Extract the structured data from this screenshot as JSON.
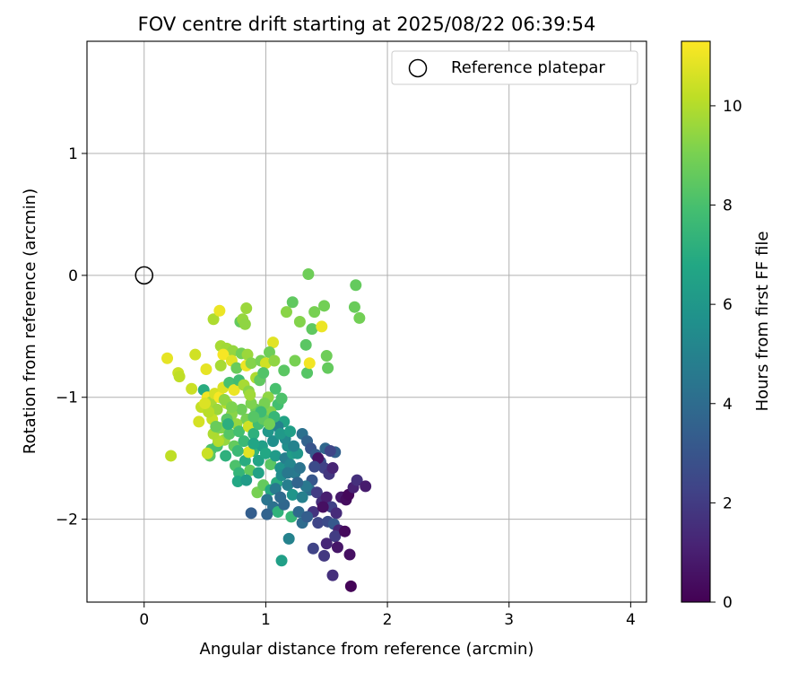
{
  "chart_data": {
    "type": "scatter",
    "title": "FOV centre drift starting at 2025/08/22 06:39:54",
    "xlabel": "Angular distance from reference (arcmin)",
    "ylabel": "Rotation from reference (arcmin)",
    "xlim": [
      -0.47,
      4.13
    ],
    "ylim": [
      -2.68,
      1.92
    ],
    "xticks": [
      0,
      1,
      2,
      3,
      4
    ],
    "yticks": [
      -2,
      -1,
      0,
      1
    ],
    "grid": true,
    "legend": {
      "position": "top-right",
      "label": "Reference platepar"
    },
    "reference_point": {
      "x": 0,
      "y": 0
    },
    "colorbar": {
      "label": "Hours from first FF file",
      "colormap": "viridis",
      "range": [
        0,
        11.3
      ],
      "ticks": [
        0,
        2,
        4,
        6,
        8,
        10
      ]
    },
    "series": [
      {
        "points": [
          [
            1.35,
            0.01,
            8.8
          ],
          [
            1.74,
            -0.08,
            8.6
          ],
          [
            1.22,
            -0.22,
            8.5
          ],
          [
            1.4,
            -0.3,
            9.0
          ],
          [
            1.48,
            -0.25,
            8.9
          ],
          [
            1.73,
            -0.26,
            8.7
          ],
          [
            1.77,
            -0.35,
            8.9
          ],
          [
            1.17,
            -0.3,
            9.3
          ],
          [
            1.28,
            -0.38,
            9.2
          ],
          [
            1.38,
            -0.44,
            8.5
          ],
          [
            1.46,
            -0.42,
            11.0
          ],
          [
            1.33,
            -0.57,
            8.4
          ],
          [
            1.24,
            -0.7,
            9.0
          ],
          [
            1.5,
            -0.66,
            8.8
          ],
          [
            1.51,
            -0.76,
            8.6
          ],
          [
            1.34,
            -0.8,
            8.3
          ],
          [
            1.36,
            -0.72,
            11.1
          ],
          [
            1.15,
            -0.78,
            8.4
          ],
          [
            1.06,
            -0.55,
            10.8
          ],
          [
            0.79,
            -0.38,
            8.6
          ],
          [
            0.81,
            -0.36,
            9.5
          ],
          [
            0.83,
            -0.4,
            9.4
          ],
          [
            0.84,
            -0.27,
            9.6
          ],
          [
            0.57,
            -0.36,
            9.9
          ],
          [
            0.62,
            -0.29,
            11.0
          ],
          [
            0.63,
            -0.58,
            9.8
          ],
          [
            0.68,
            -0.6,
            9.7
          ],
          [
            0.73,
            -0.62,
            9.5
          ],
          [
            0.8,
            -0.64,
            8.9
          ],
          [
            0.85,
            -0.65,
            9.6
          ],
          [
            0.65,
            -0.65,
            11.2
          ],
          [
            0.72,
            -0.7,
            10.8
          ],
          [
            0.76,
            -0.76,
            8.7
          ],
          [
            0.84,
            -0.74,
            11.0
          ],
          [
            0.88,
            -0.72,
            9.2
          ],
          [
            0.96,
            -0.7,
            9.0
          ],
          [
            1.0,
            -0.72,
            10.5
          ],
          [
            1.03,
            -0.63,
            8.8
          ],
          [
            1.07,
            -0.7,
            9.4
          ],
          [
            0.63,
            -0.74,
            9.8
          ],
          [
            0.19,
            -0.68,
            10.9
          ],
          [
            0.28,
            -0.8,
            10.4
          ],
          [
            0.29,
            -0.83,
            10.2
          ],
          [
            0.42,
            -0.65,
            10.5
          ],
          [
            0.51,
            -0.77,
            10.9
          ],
          [
            0.39,
            -0.93,
            10.4
          ],
          [
            0.49,
            -0.94,
            7.0
          ],
          [
            0.47,
            -1.08,
            10.3
          ],
          [
            0.52,
            -1.0,
            11.1
          ],
          [
            0.55,
            -1.04,
            9.8
          ],
          [
            0.58,
            -0.97,
            10.6
          ],
          [
            0.62,
            -1.0,
            11.2
          ],
          [
            0.65,
            -0.92,
            10.7
          ],
          [
            0.68,
            -1.05,
            10.0
          ],
          [
            0.7,
            -0.88,
            8.0
          ],
          [
            0.74,
            -0.94,
            11.0
          ],
          [
            0.78,
            -0.86,
            7.8
          ],
          [
            0.82,
            -0.9,
            9.8
          ],
          [
            0.86,
            -0.95,
            9.3
          ],
          [
            0.92,
            -0.84,
            9.9
          ],
          [
            0.95,
            -0.86,
            8.5
          ],
          [
            0.98,
            -0.8,
            8.2
          ],
          [
            1.08,
            -0.93,
            8.0
          ],
          [
            1.1,
            -1.06,
            7.9
          ],
          [
            1.13,
            -1.01,
            8.1
          ],
          [
            1.15,
            -1.2,
            6.6
          ],
          [
            1.02,
            -1.0,
            9.4
          ],
          [
            1.04,
            -1.12,
            9.2
          ],
          [
            0.92,
            -1.1,
            8.7
          ],
          [
            0.88,
            -1.05,
            9.1
          ],
          [
            0.84,
            -1.18,
            9.0
          ],
          [
            0.8,
            -1.1,
            8.8
          ],
          [
            0.76,
            -1.22,
            9.5
          ],
          [
            0.72,
            -1.14,
            9.3
          ],
          [
            0.68,
            -1.18,
            8.4
          ],
          [
            0.64,
            -1.25,
            9.7
          ],
          [
            0.6,
            -1.1,
            9.6
          ],
          [
            0.56,
            -1.18,
            10.3
          ],
          [
            0.66,
            -1.35,
            9.5
          ],
          [
            0.7,
            -1.3,
            8.3
          ],
          [
            0.74,
            -1.4,
            8.6
          ],
          [
            0.78,
            -1.28,
            7.9
          ],
          [
            0.82,
            -1.36,
            7.6
          ],
          [
            0.86,
            -1.24,
            10.5
          ],
          [
            0.9,
            -1.3,
            7.2
          ],
          [
            0.94,
            -1.22,
            7.8
          ],
          [
            0.98,
            -1.18,
            8.5
          ],
          [
            1.02,
            -1.28,
            6.0
          ],
          [
            1.06,
            -1.36,
            5.6
          ],
          [
            1.1,
            -1.24,
            5.0
          ],
          [
            0.55,
            -1.43,
            8.1
          ],
          [
            0.54,
            -1.48,
            8.4
          ],
          [
            0.6,
            -1.4,
            8.0
          ],
          [
            0.67,
            -1.48,
            7.2
          ],
          [
            0.75,
            -1.56,
            8.1
          ],
          [
            0.78,
            -1.62,
            7.4
          ],
          [
            0.77,
            -1.69,
            6.8
          ],
          [
            0.83,
            -1.52,
            7.0
          ],
          [
            0.87,
            -1.6,
            8.6
          ],
          [
            0.9,
            -1.44,
            7.3
          ],
          [
            0.94,
            -1.52,
            6.6
          ],
          [
            0.97,
            -1.4,
            6.4
          ],
          [
            1.0,
            -1.46,
            6.8
          ],
          [
            1.04,
            -1.55,
            8.4
          ],
          [
            1.08,
            -1.48,
            6.2
          ],
          [
            1.12,
            -1.58,
            5.8
          ],
          [
            1.16,
            -1.5,
            4.8
          ],
          [
            1.2,
            -1.55,
            5.2
          ],
          [
            1.24,
            -1.62,
            4.6
          ],
          [
            1.22,
            -1.46,
            6.3
          ],
          [
            1.18,
            -1.4,
            5.6
          ],
          [
            1.26,
            -1.46,
            6.0
          ],
          [
            0.93,
            -1.78,
            9.0
          ],
          [
            0.98,
            -1.72,
            8.6
          ],
          [
            1.04,
            -1.76,
            6.9
          ],
          [
            1.09,
            -1.7,
            7.0
          ],
          [
            1.13,
            -1.64,
            5.5
          ],
          [
            1.18,
            -1.72,
            4.8
          ],
          [
            1.22,
            -1.8,
            5.9
          ],
          [
            1.01,
            -1.84,
            4.4
          ],
          [
            1.06,
            -1.9,
            4.2
          ],
          [
            1.1,
            -1.94,
            7.3
          ],
          [
            1.15,
            -1.88,
            3.8
          ],
          [
            1.21,
            -1.98,
            7.5
          ],
          [
            1.27,
            -1.94,
            3.9
          ],
          [
            1.01,
            -1.96,
            3.6
          ],
          [
            0.88,
            -1.95,
            3.4
          ],
          [
            1.19,
            -2.16,
            5.0
          ],
          [
            1.13,
            -2.34,
            6.4
          ],
          [
            1.3,
            -1.3,
            4.2
          ],
          [
            1.34,
            -1.36,
            3.6
          ],
          [
            1.37,
            -1.42,
            3.0
          ],
          [
            1.41,
            -1.47,
            3.3
          ],
          [
            1.45,
            -1.53,
            2.8
          ],
          [
            1.49,
            -1.42,
            3.8
          ],
          [
            1.43,
            -1.5,
            0.6
          ],
          [
            1.48,
            -1.58,
            2.2
          ],
          [
            1.52,
            -1.63,
            1.8
          ],
          [
            1.55,
            -1.58,
            1.2
          ],
          [
            1.57,
            -1.45,
            3.5
          ],
          [
            1.53,
            -1.44,
            2.4
          ],
          [
            1.4,
            -1.57,
            2.6
          ],
          [
            1.38,
            -1.68,
            3.1
          ],
          [
            1.36,
            -1.76,
            4.1
          ],
          [
            1.33,
            -1.73,
            4.5
          ],
          [
            1.3,
            -1.82,
            4.9
          ],
          [
            1.42,
            -1.78,
            2.0
          ],
          [
            1.46,
            -1.86,
            1.5
          ],
          [
            1.5,
            -1.82,
            1.0
          ],
          [
            1.54,
            -1.9,
            2.2
          ],
          [
            1.58,
            -1.95,
            1.4
          ],
          [
            1.62,
            -1.82,
            0.8
          ],
          [
            1.66,
            -1.84,
            0.4
          ],
          [
            1.68,
            -1.8,
            0.2
          ],
          [
            1.72,
            -1.74,
            1.1
          ],
          [
            1.75,
            -1.68,
            1.6
          ],
          [
            1.82,
            -1.73,
            0.9
          ],
          [
            1.39,
            -1.94,
            1.7
          ],
          [
            1.43,
            -2.03,
            2.4
          ],
          [
            1.47,
            -1.9,
            0.5
          ],
          [
            1.51,
            -2.02,
            2.6
          ],
          [
            1.56,
            -2.04,
            3.2
          ],
          [
            1.6,
            -2.09,
            1.2
          ],
          [
            1.57,
            -2.14,
            2.0
          ],
          [
            1.5,
            -2.2,
            1.3
          ],
          [
            1.48,
            -2.3,
            1.9
          ],
          [
            1.39,
            -2.24,
            2.3
          ],
          [
            1.59,
            -2.23,
            0.7
          ],
          [
            1.65,
            -2.1,
            0.3
          ],
          [
            1.69,
            -2.29,
            0.5
          ],
          [
            1.55,
            -2.46,
            1.6
          ],
          [
            1.7,
            -2.55,
            0.1
          ],
          [
            1.3,
            -2.03,
            4.0
          ],
          [
            1.34,
            -1.98,
            3.4
          ],
          [
            0.61,
            -1.36,
            10.0
          ],
          [
            0.57,
            -1.3,
            9.9
          ],
          [
            0.52,
            -1.46,
            10.4
          ],
          [
            0.22,
            -1.48,
            10.2
          ],
          [
            0.62,
            -1.25,
            9.1
          ],
          [
            0.66,
            -1.02,
            9.4
          ],
          [
            0.86,
            -1.45,
            10.8
          ],
          [
            0.9,
            -1.38,
            6.7
          ],
          [
            0.94,
            -1.62,
            6.5
          ],
          [
            0.84,
            -1.68,
            6.2
          ],
          [
            0.77,
            -1.44,
            7.6
          ],
          [
            1.08,
            -1.75,
            4.6
          ],
          [
            1.12,
            -1.82,
            3.9
          ],
          [
            1.18,
            -1.62,
            4.5
          ],
          [
            1.26,
            -1.7,
            3.7
          ],
          [
            1.28,
            -1.58,
            4.3
          ],
          [
            1.23,
            -1.4,
            5.0
          ],
          [
            1.16,
            -1.34,
            5.3
          ],
          [
            1.12,
            -1.3,
            6.1
          ],
          [
            1.2,
            -1.28,
            6.4
          ],
          [
            1.07,
            -1.16,
            7.5
          ],
          [
            1.03,
            -1.22,
            8.9
          ],
          [
            0.99,
            -1.05,
            9.0
          ],
          [
            0.96,
            -1.12,
            7.7
          ],
          [
            0.9,
            -1.16,
            8.3
          ],
          [
            0.87,
            -0.98,
            9.7
          ],
          [
            0.72,
            -1.08,
            9.1
          ],
          [
            0.69,
            -1.22,
            7.1
          ],
          [
            0.59,
            -1.24,
            8.7
          ],
          [
            0.53,
            -1.12,
            10.1
          ],
          [
            0.45,
            -1.2,
            10.6
          ],
          [
            0.5,
            -1.05,
            10.7
          ]
        ]
      }
    ]
  }
}
